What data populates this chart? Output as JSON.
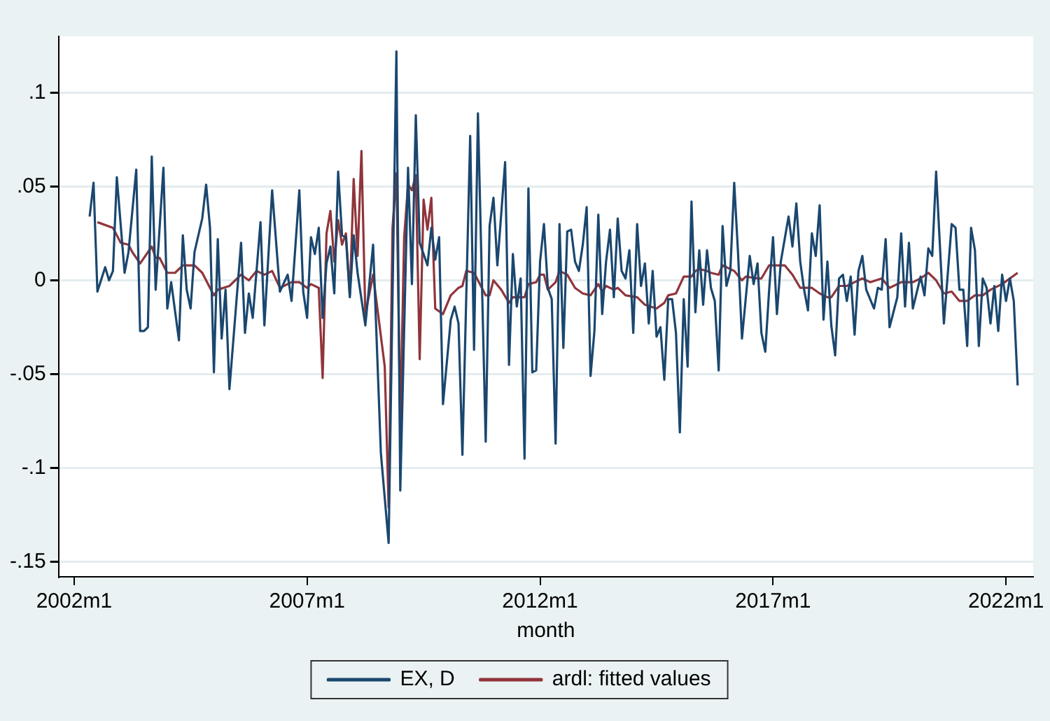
{
  "chart_data": {
    "type": "line",
    "xlabel": "month",
    "xlim": [
      "2001-09",
      "2022-08"
    ],
    "xticks": [
      {
        "value": "2002-01",
        "label": "2002m1"
      },
      {
        "value": "2007-01",
        "label": "2007m1"
      },
      {
        "value": "2012-01",
        "label": "2012m1"
      },
      {
        "value": "2017-01",
        "label": "2017m1"
      },
      {
        "value": "2022-01",
        "label": "2022m1"
      }
    ],
    "ylim": [
      -0.158,
      0.13
    ],
    "yticks": [
      {
        "value": -0.15,
        "label": "-.15"
      },
      {
        "value": -0.1,
        "label": "-.1"
      },
      {
        "value": -0.05,
        "label": "-.05"
      },
      {
        "value": 0,
        "label": "0"
      },
      {
        "value": 0.05,
        "label": ".05"
      },
      {
        "value": 0.1,
        "label": ".1"
      }
    ],
    "grid": "y",
    "legend": "bottom",
    "marker": "none",
    "line_style": "solid",
    "series": [
      {
        "name": "EX, D",
        "color": "#1a476f",
        "x": [
          "2002-05",
          "2002-06",
          "2002-07",
          "2002-09",
          "2002-10",
          "2002-11",
          "2002-12",
          "2003-02",
          "2003-03",
          "2003-05",
          "2003-06",
          "2003-07",
          "2003-08",
          "2003-09",
          "2003-10",
          "2003-12",
          "2004-01",
          "2004-02",
          "2004-04",
          "2004-05",
          "2004-06",
          "2004-07",
          "2004-08",
          "2004-10",
          "2004-11",
          "2004-12",
          "2005-01",
          "2005-02",
          "2005-03",
          "2005-04",
          "2005-05",
          "2005-08",
          "2005-09",
          "2005-10",
          "2005-11",
          "2006-01",
          "2006-02",
          "2006-04",
          "2006-06",
          "2006-08",
          "2006-09",
          "2006-11",
          "2006-12",
          "2007-01",
          "2007-02",
          "2007-03",
          "2007-04",
          "2007-05",
          "2007-06",
          "2007-07",
          "2007-08",
          "2007-09",
          "2007-10",
          "2007-11",
          "2007-12",
          "2008-01",
          "2008-02",
          "2008-04",
          "2008-06",
          "2008-08",
          "2008-10",
          "2008-12",
          "2009-01",
          "2009-03",
          "2009-04",
          "2009-05",
          "2009-06",
          "2009-08",
          "2009-09",
          "2009-10",
          "2009-11",
          "2009-12",
          "2010-02",
          "2010-03",
          "2010-04",
          "2010-05",
          "2010-07",
          "2010-08",
          "2010-09",
          "2010-11",
          "2010-12",
          "2011-01",
          "2011-02",
          "2011-04",
          "2011-05",
          "2011-06",
          "2011-07",
          "2011-08",
          "2011-09",
          "2011-10",
          "2011-11",
          "2011-12",
          "2012-01",
          "2012-02",
          "2012-03",
          "2012-04",
          "2012-05",
          "2012-06",
          "2012-07",
          "2012-08",
          "2012-09",
          "2012-10",
          "2012-11",
          "2012-12",
          "2013-01",
          "2013-02",
          "2013-03",
          "2013-04",
          "2013-05",
          "2013-06",
          "2013-07",
          "2013-08",
          "2013-09",
          "2013-10",
          "2013-11",
          "2013-12",
          "2014-01",
          "2014-02",
          "2014-03",
          "2014-04",
          "2014-05",
          "2014-06",
          "2014-07",
          "2014-08",
          "2014-09",
          "2014-10",
          "2014-11",
          "2014-12",
          "2015-01",
          "2015-02",
          "2015-03",
          "2015-04",
          "2015-05",
          "2015-06",
          "2015-07",
          "2015-08",
          "2015-09",
          "2015-10",
          "2015-11",
          "2015-12",
          "2016-01",
          "2016-02",
          "2016-03",
          "2016-04",
          "2016-05",
          "2016-07",
          "2016-08",
          "2016-09",
          "2016-10",
          "2016-11",
          "2016-12",
          "2017-01",
          "2017-02",
          "2017-03",
          "2017-05",
          "2017-06",
          "2017-07",
          "2017-08",
          "2017-09",
          "2017-10",
          "2017-11",
          "2017-12",
          "2018-01",
          "2018-02",
          "2018-03",
          "2018-04",
          "2018-05",
          "2018-06",
          "2018-07",
          "2018-08",
          "2018-09",
          "2018-10",
          "2018-11",
          "2018-12",
          "2019-01",
          "2019-03",
          "2019-04",
          "2019-05",
          "2019-06",
          "2019-07",
          "2019-09",
          "2019-10",
          "2019-11",
          "2019-12",
          "2020-01",
          "2020-03",
          "2020-04",
          "2020-05",
          "2020-06",
          "2020-07",
          "2020-09",
          "2020-11",
          "2020-12",
          "2021-01",
          "2021-02",
          "2021-03",
          "2021-04",
          "2021-05",
          "2021-06",
          "2021-07",
          "2021-08",
          "2021-09",
          "2021-10",
          "2021-11",
          "2021-12",
          "2022-01",
          "2022-02",
          "2022-03",
          "2022-04"
        ],
        "values": [
          0.034,
          0.052,
          -0.006,
          0.007,
          0,
          0.005,
          0.055,
          0.004,
          0.015,
          0.059,
          -0.027,
          -0.027,
          -0.025,
          0.066,
          -0.005,
          0.06,
          -0.015,
          -0.001,
          -0.032,
          0.024,
          -0.005,
          -0.015,
          0.015,
          0.033,
          0.051,
          0.028,
          -0.049,
          0.022,
          -0.031,
          -0.005,
          -0.058,
          0.02,
          -0.028,
          -0.007,
          -0.02,
          0.031,
          -0.024,
          0.048,
          -0.006,
          0.003,
          -0.011,
          0.048,
          -0.006,
          -0.02,
          0.023,
          0.014,
          0.028,
          -0.02,
          0.009,
          0.018,
          -0.007,
          0.058,
          0.024,
          0.023,
          -0.009,
          0.024,
          0.004,
          -0.024,
          0.019,
          -0.092,
          -0.14,
          0.122,
          -0.112,
          0.06,
          -0.002,
          0.088,
          0.02,
          0.008,
          0.028,
          0.011,
          0.023,
          -0.066,
          -0.021,
          -0.014,
          -0.023,
          -0.093,
          0.077,
          -0.037,
          0.089,
          -0.086,
          0.029,
          0.044,
          0.008,
          0.063,
          -0.045,
          0.014,
          -0.014,
          0.001,
          -0.095,
          0.049,
          -0.049,
          -0.048,
          0.01,
          0.03,
          -0.004,
          -0.01,
          -0.087,
          0.03,
          -0.036,
          0.026,
          0.027,
          0.01,
          0.005,
          0.019,
          0.039,
          -0.051,
          -0.027,
          0.035,
          -0.018,
          0.01,
          0.027,
          -0.009,
          0.033,
          0.005,
          0.001,
          0.016,
          -0.028,
          0.03,
          -0.003,
          0.009,
          -0.023,
          0.005,
          -0.03,
          -0.025,
          -0.053,
          -0.01,
          -0.01,
          -0.028,
          -0.081,
          -0.01,
          -0.046,
          0.042,
          -0.017,
          0.016,
          -0.013,
          0.016,
          -0.004,
          -0.011,
          -0.048,
          0.029,
          -0.003,
          0.005,
          0.052,
          0.014,
          -0.031,
          0.013,
          -0.002,
          0.009,
          -0.028,
          -0.038,
          -0.005,
          0.023,
          -0.018,
          0.01,
          0.034,
          0.018,
          0.041,
          0.01,
          -0.005,
          -0.016,
          0.025,
          0.013,
          0.04,
          -0.021,
          0.01,
          -0.024,
          -0.04,
          0.001,
          0.003,
          -0.011,
          0.002,
          -0.029,
          0.005,
          0.013,
          -0.005,
          -0.015,
          -0.004,
          -0.005,
          0.022,
          -0.025,
          -0.009,
          0.025,
          -0.014,
          0.02,
          -0.015,
          0.002,
          -0.008,
          0.017,
          0.013,
          0.058,
          -0.023,
          0.03,
          0.028,
          -0.005,
          -0.005,
          -0.035,
          0.028,
          0.016,
          -0.035,
          0.001,
          -0.004,
          -0.023,
          -0.003,
          -0.027,
          0.003,
          -0.011,
          0.001,
          -0.011,
          -0.056
        ]
      },
      {
        "name": "ardl: fitted values",
        "color": "#90353b",
        "x": [
          "2002-07",
          "2002-11",
          "2003-01",
          "2003-03",
          "2003-04",
          "2003-06",
          "2003-09",
          "2003-10",
          "2003-11",
          "2004-01",
          "2004-03",
          "2004-05",
          "2004-08",
          "2004-10",
          "2005-01",
          "2005-02",
          "2005-05",
          "2005-08",
          "2005-10",
          "2005-12",
          "2006-02",
          "2006-04",
          "2006-06",
          "2006-09",
          "2006-11",
          "2007-01",
          "2007-02",
          "2007-04",
          "2007-05",
          "2007-06",
          "2007-07",
          "2007-08",
          "2007-09",
          "2007-10",
          "2007-11",
          "2007-12",
          "2008-01",
          "2008-02",
          "2008-03",
          "2008-04",
          "2008-06",
          "2008-09",
          "2008-10",
          "2008-11",
          "2008-12",
          "2009-01",
          "2009-02",
          "2009-03",
          "2009-04",
          "2009-05",
          "2009-06",
          "2009-07",
          "2009-08",
          "2009-09",
          "2009-10",
          "2009-12",
          "2010-02",
          "2010-04",
          "2010-05",
          "2010-06",
          "2010-08",
          "2010-09",
          "2010-11",
          "2010-12",
          "2011-01",
          "2011-03",
          "2011-05",
          "2011-06",
          "2011-09",
          "2011-10",
          "2011-12",
          "2012-01",
          "2012-02",
          "2012-03",
          "2012-05",
          "2012-06",
          "2012-08",
          "2012-10",
          "2012-12",
          "2013-02",
          "2013-04",
          "2013-05",
          "2013-06",
          "2013-08",
          "2013-09",
          "2013-11",
          "2014-02",
          "2014-04",
          "2014-07",
          "2014-09",
          "2014-10",
          "2014-12",
          "2015-02",
          "2015-04",
          "2015-05",
          "2015-06",
          "2015-08",
          "2015-09",
          "2015-11",
          "2015-12",
          "2016-03",
          "2016-05",
          "2016-06",
          "2016-09",
          "2016-10",
          "2016-12",
          "2017-03",
          "2017-04",
          "2017-06",
          "2017-08",
          "2017-11",
          "2018-01",
          "2018-03",
          "2018-04",
          "2018-06",
          "2018-08",
          "2018-10",
          "2018-12",
          "2019-02",
          "2019-05",
          "2019-07",
          "2019-10",
          "2020-01",
          "2020-03",
          "2020-05",
          "2020-07",
          "2020-09",
          "2020-11",
          "2021-01",
          "2021-03",
          "2021-05",
          "2021-07",
          "2021-09",
          "2021-12",
          "2022-02",
          "2022-04"
        ],
        "values": [
          0.031,
          0.028,
          0.02,
          0.019,
          0.015,
          0.009,
          0.018,
          0.012,
          0.012,
          0.004,
          0.004,
          0.008,
          0.008,
          0.004,
          -0.008,
          -0.005,
          -0.003,
          0.003,
          0,
          0.005,
          0.003,
          0.005,
          -0.004,
          -0.001,
          -0.001,
          -0.004,
          -0.002,
          -0.004,
          -0.052,
          0.025,
          0.037,
          0.01,
          0.032,
          0.019,
          0.025,
          -0.008,
          0.054,
          0.013,
          0.069,
          -0.018,
          0.003,
          -0.046,
          -0.121,
          0.028,
          0.057,
          -0.076,
          0.023,
          0.051,
          0.048,
          0.056,
          -0.042,
          0.043,
          0.027,
          0.044,
          -0.015,
          -0.018,
          -0.008,
          -0.004,
          -0.003,
          0.005,
          0.004,
          0,
          -0.008,
          -0.008,
          0,
          -0.005,
          -0.012,
          -0.009,
          -0.009,
          -0.002,
          -0.001,
          0.003,
          0.003,
          -0.005,
          -0.001,
          0.005,
          0.003,
          -0.004,
          -0.007,
          -0.008,
          -0.002,
          -0.006,
          -0.003,
          -0.005,
          -0.004,
          -0.008,
          -0.009,
          -0.013,
          -0.015,
          -0.012,
          -0.008,
          -0.007,
          0.002,
          0.002,
          0.005,
          0.006,
          0.005,
          0.004,
          0.003,
          0.008,
          0.005,
          0,
          0.002,
          0.001,
          0.001,
          0.008,
          0.008,
          0.008,
          0.003,
          -0.004,
          -0.004,
          -0.007,
          -0.009,
          -0.009,
          -0.003,
          -0.003,
          -0.001,
          0.001,
          -0.001,
          0.001,
          -0.004,
          -0.001,
          -0.001,
          0.001,
          0.004,
          0,
          -0.007,
          -0.006,
          -0.011,
          -0.011,
          -0.008,
          -0.008,
          -0.005,
          -0.002,
          0.001,
          0.004
        ]
      }
    ]
  }
}
